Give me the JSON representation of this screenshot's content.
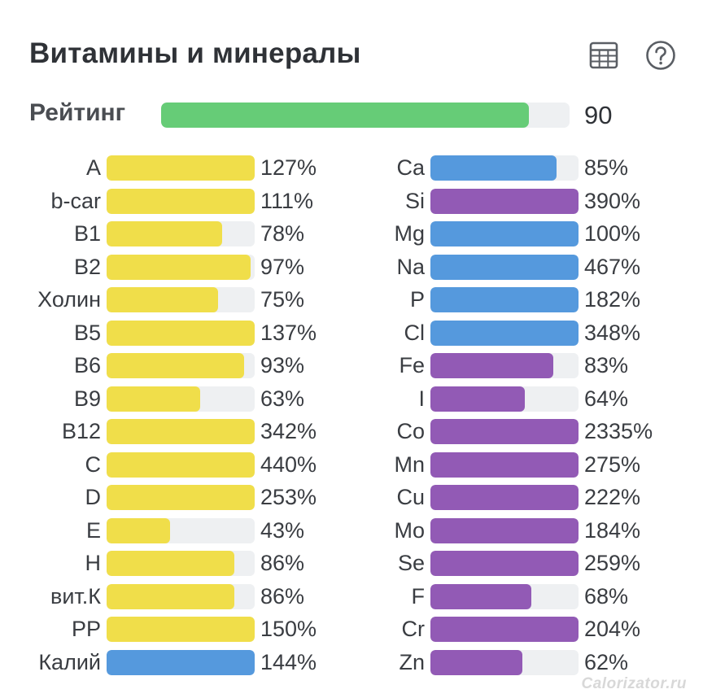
{
  "header": {
    "title": "Витамины и минералы",
    "table_icon": "table-icon",
    "help_icon": "help-circle-icon"
  },
  "rating": {
    "label": "Рейтинг",
    "value": "90",
    "fill_percent": 90,
    "color": "#66cc77"
  },
  "colors": {
    "vitamin": "#f0de4a",
    "macro": "#5599dd",
    "trace": "#925ab5",
    "track": "#eef0f2"
  },
  "vitamins": [
    {
      "name": "A",
      "pct": "127%",
      "fill": 100,
      "kind": "vitamin"
    },
    {
      "name": "b-car",
      "pct": "111%",
      "fill": 100,
      "kind": "vitamin"
    },
    {
      "name": "B1",
      "pct": "78%",
      "fill": 78,
      "kind": "vitamin"
    },
    {
      "name": "B2",
      "pct": "97%",
      "fill": 97,
      "kind": "vitamin"
    },
    {
      "name": "Холин",
      "pct": "75%",
      "fill": 75,
      "kind": "vitamin"
    },
    {
      "name": "B5",
      "pct": "137%",
      "fill": 100,
      "kind": "vitamin"
    },
    {
      "name": "B6",
      "pct": "93%",
      "fill": 93,
      "kind": "vitamin"
    },
    {
      "name": "B9",
      "pct": "63%",
      "fill": 63,
      "kind": "vitamin"
    },
    {
      "name": "B12",
      "pct": "342%",
      "fill": 100,
      "kind": "vitamin"
    },
    {
      "name": "C",
      "pct": "440%",
      "fill": 100,
      "kind": "vitamin"
    },
    {
      "name": "D",
      "pct": "253%",
      "fill": 100,
      "kind": "vitamin"
    },
    {
      "name": "E",
      "pct": "43%",
      "fill": 43,
      "kind": "vitamin"
    },
    {
      "name": "H",
      "pct": "86%",
      "fill": 86,
      "kind": "vitamin"
    },
    {
      "name": "вит.К",
      "pct": "86%",
      "fill": 86,
      "kind": "vitamin"
    },
    {
      "name": "PP",
      "pct": "150%",
      "fill": 100,
      "kind": "vitamin"
    },
    {
      "name": "Калий",
      "pct": "144%",
      "fill": 100,
      "kind": "macro"
    }
  ],
  "minerals": [
    {
      "name": "Ca",
      "pct": "85%",
      "fill": 85,
      "kind": "macro"
    },
    {
      "name": "Si",
      "pct": "390%",
      "fill": 100,
      "kind": "trace"
    },
    {
      "name": "Mg",
      "pct": "100%",
      "fill": 100,
      "kind": "macro"
    },
    {
      "name": "Na",
      "pct": "467%",
      "fill": 100,
      "kind": "macro"
    },
    {
      "name": "P",
      "pct": "182%",
      "fill": 100,
      "kind": "macro"
    },
    {
      "name": "Cl",
      "pct": "348%",
      "fill": 100,
      "kind": "macro"
    },
    {
      "name": "Fe",
      "pct": "83%",
      "fill": 83,
      "kind": "trace"
    },
    {
      "name": "I",
      "pct": "64%",
      "fill": 64,
      "kind": "trace"
    },
    {
      "name": "Co",
      "pct": "2335%",
      "fill": 100,
      "kind": "trace"
    },
    {
      "name": "Mn",
      "pct": "275%",
      "fill": 100,
      "kind": "trace"
    },
    {
      "name": "Cu",
      "pct": "222%",
      "fill": 100,
      "kind": "trace"
    },
    {
      "name": "Mo",
      "pct": "184%",
      "fill": 100,
      "kind": "trace"
    },
    {
      "name": "Se",
      "pct": "259%",
      "fill": 100,
      "kind": "trace"
    },
    {
      "name": "F",
      "pct": "68%",
      "fill": 68,
      "kind": "trace"
    },
    {
      "name": "Cr",
      "pct": "204%",
      "fill": 100,
      "kind": "trace"
    },
    {
      "name": "Zn",
      "pct": "62%",
      "fill": 62,
      "kind": "trace"
    }
  ],
  "watermark": "Calorizator.ru"
}
